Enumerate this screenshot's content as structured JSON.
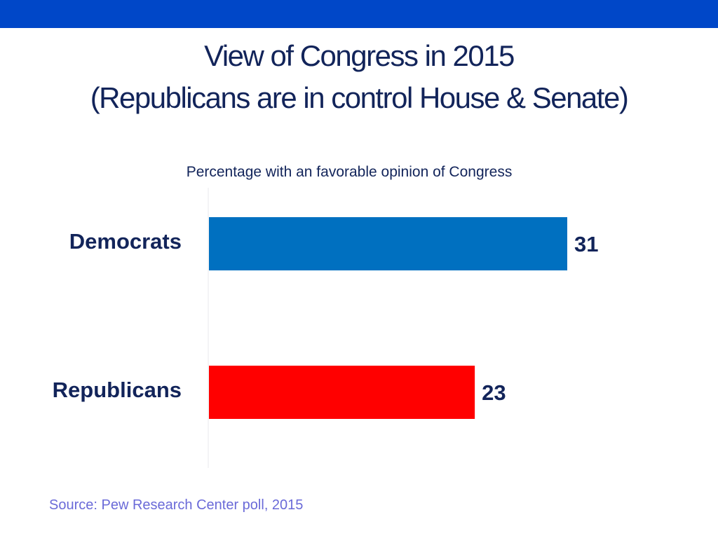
{
  "colors": {
    "top_band": "#0047c8",
    "title": "#12245a",
    "axis_line": "#e8e8ee",
    "source": "#6a6ad8"
  },
  "chart_data": {
    "type": "bar",
    "orientation": "horizontal",
    "title_lines": [
      "View of Congress in 2015",
      "(Republicans are in control House & Senate)"
    ],
    "subtitle": "Percentage with an favorable opinion of Congress",
    "categories": [
      "Democrats",
      "Republicans"
    ],
    "values": [
      31,
      23
    ],
    "value_labels": [
      "31",
      "23"
    ],
    "bar_colors": [
      "#0070c0",
      "#ff0000"
    ],
    "xlim": [
      0,
      31
    ],
    "grid": false,
    "legend": "none"
  },
  "source": "Source: Pew Research Center poll, 2015"
}
